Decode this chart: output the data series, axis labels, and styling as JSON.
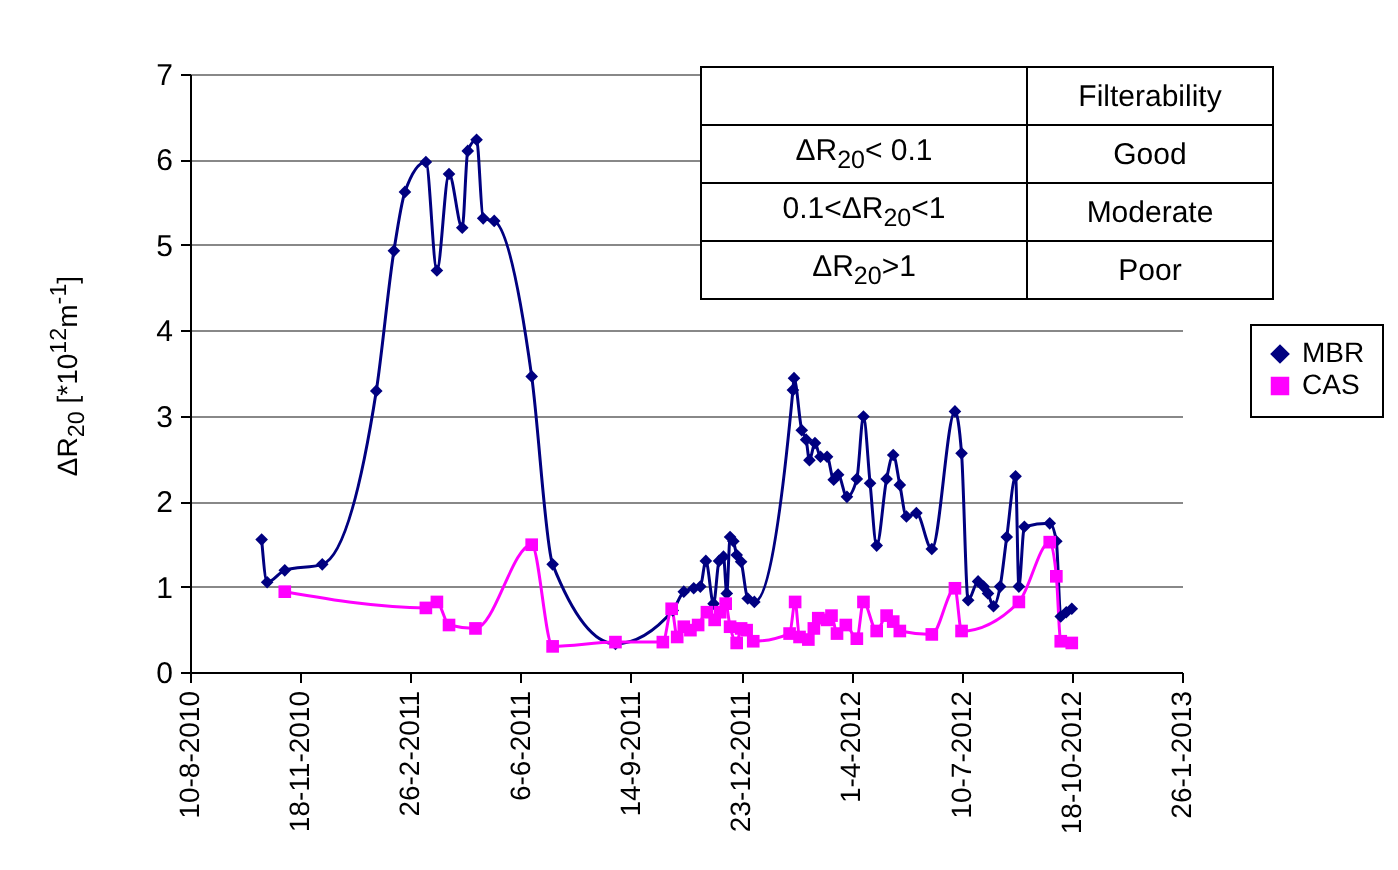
{
  "chart_data": {
    "type": "line",
    "ylabel": "ΔR$_{20}$ [*10$^{12}$m$^{-1}$]",
    "annotations": [
      "Filterability",
      "ΔR$_{20}$< 0.1",
      "Good",
      "0.1<ΔR$_{20}$<1",
      "Moderate",
      "ΔR$_{20}$>1",
      "Poor"
    ],
    "xlim": [
      "2010-08-10",
      "2013-01-26"
    ],
    "xticks": [
      {
        "value": "2010-08-10",
        "label": "10-8-2010"
      },
      {
        "value": "2010-11-18",
        "label": "18-11-2010"
      },
      {
        "value": "2011-02-26",
        "label": "26-2-2011"
      },
      {
        "value": "2011-06-06",
        "label": "6-6-2011"
      },
      {
        "value": "2011-09-14",
        "label": "14-9-2011"
      },
      {
        "value": "2011-12-23",
        "label": "23-12-2011"
      },
      {
        "value": "2012-04-01",
        "label": "1-4-2012"
      },
      {
        "value": "2012-07-10",
        "label": "10-7-2012"
      },
      {
        "value": "2012-10-18",
        "label": "18-10-2012"
      },
      {
        "value": "2013-01-26",
        "label": "26-1-2013"
      }
    ],
    "ylim": [
      0,
      7
    ],
    "yticks": [
      0,
      1,
      2,
      3,
      4,
      5,
      6,
      7
    ],
    "grid": "y",
    "legend": "right",
    "line_style": "solid",
    "series": [
      {
        "name": "MBR",
        "color": "#000080",
        "marker": "diamond",
        "x": [
          "2010-10-14",
          "2010-10-19",
          "2010-11-04",
          "2010-12-08",
          "2011-01-26",
          "2011-02-11",
          "2011-02-21",
          "2011-03-12",
          "2011-03-22",
          "2011-04-02",
          "2011-04-14",
          "2011-04-19",
          "2011-04-27",
          "2011-05-03",
          "2011-05-13",
          "2011-06-16",
          "2011-07-05",
          "2011-08-31",
          "2011-10-22",
          "2011-11-01",
          "2011-11-10",
          "2011-11-16",
          "2011-11-21",
          "2011-11-28",
          "2011-12-03",
          "2011-12-07",
          "2011-12-10",
          "2011-12-13",
          "2011-12-16",
          "2011-12-19",
          "2011-12-23",
          "2011-12-29",
          "2012-01-04",
          "2012-02-08",
          "2012-02-09",
          "2012-02-16",
          "2012-02-20",
          "2012-02-23",
          "2012-02-28",
          "2012-03-04",
          "2012-03-10",
          "2012-03-16",
          "2012-03-20",
          "2012-03-28",
          "2012-04-06",
          "2012-04-12",
          "2012-04-18",
          "2012-04-24",
          "2012-05-03",
          "2012-05-09",
          "2012-05-15",
          "2012-05-21",
          "2012-05-30",
          "2012-06-13",
          "2012-07-04",
          "2012-07-10",
          "2012-07-16",
          "2012-07-25",
          "2012-07-30",
          "2012-08-03",
          "2012-08-08",
          "2012-08-14",
          "2012-08-20",
          "2012-08-28",
          "2012-08-31",
          "2012-09-05",
          "2012-09-28",
          "2012-10-04",
          "2012-10-08",
          "2012-10-13",
          "2012-10-18"
        ],
        "values": [
          1.55,
          1.05,
          1.19,
          1.26,
          3.29,
          4.93,
          5.62,
          5.97,
          4.7,
          5.83,
          5.2,
          6.1,
          6.23,
          5.31,
          5.28,
          3.46,
          1.26,
          0.33,
          0.72,
          0.94,
          0.98,
          1.0,
          1.3,
          0.8,
          1.3,
          1.35,
          0.92,
          1.58,
          1.53,
          1.37,
          1.29,
          0.86,
          0.82,
          3.3,
          3.44,
          2.83,
          2.72,
          2.48,
          2.68,
          2.52,
          2.52,
          2.25,
          2.31,
          2.05,
          2.26,
          2.99,
          2.21,
          1.48,
          2.26,
          2.54,
          2.19,
          1.82,
          1.86,
          1.44,
          3.05,
          2.56,
          0.84,
          1.06,
          1.0,
          0.92,
          0.77,
          1.0,
          1.58,
          2.29,
          1.0,
          1.7,
          1.74,
          1.53,
          0.65,
          0.7,
          0.74
        ]
      },
      {
        "name": "CAS",
        "color": "#ff00ff",
        "marker": "square",
        "x": [
          "2010-11-04",
          "2011-03-12",
          "2011-03-22",
          "2011-04-02",
          "2011-04-26",
          "2011-06-16",
          "2011-07-05",
          "2011-08-31",
          "2011-10-13",
          "2011-10-21",
          "2011-10-26",
          "2011-11-01",
          "2011-11-07",
          "2011-11-14",
          "2011-11-22",
          "2011-11-29",
          "2011-12-04",
          "2011-12-09",
          "2011-12-13",
          "2011-12-19",
          "2011-12-23",
          "2011-12-28",
          "2012-01-03",
          "2012-02-05",
          "2012-02-10",
          "2012-02-14",
          "2012-02-22",
          "2012-02-27",
          "2012-03-02",
          "2012-03-10",
          "2012-03-14",
          "2012-03-19",
          "2012-03-27",
          "2012-04-06",
          "2012-04-12",
          "2012-04-24",
          "2012-05-03",
          "2012-05-09",
          "2012-05-15",
          "2012-06-13",
          "2012-07-04",
          "2012-07-10",
          "2012-08-31",
          "2012-09-28",
          "2012-10-04",
          "2012-10-08",
          "2012-10-18"
        ],
        "values": [
          0.94,
          0.75,
          0.82,
          0.55,
          0.51,
          1.49,
          0.3,
          0.35,
          0.35,
          0.74,
          0.41,
          0.53,
          0.49,
          0.55,
          0.7,
          0.61,
          0.7,
          0.8,
          0.53,
          0.34,
          0.51,
          0.49,
          0.36,
          0.45,
          0.82,
          0.41,
          0.38,
          0.51,
          0.63,
          0.61,
          0.66,
          0.45,
          0.55,
          0.39,
          0.82,
          0.48,
          0.66,
          0.59,
          0.48,
          0.44,
          0.98,
          0.48,
          0.82,
          1.52,
          1.12,
          0.36,
          0.34
        ]
      }
    ]
  }
}
